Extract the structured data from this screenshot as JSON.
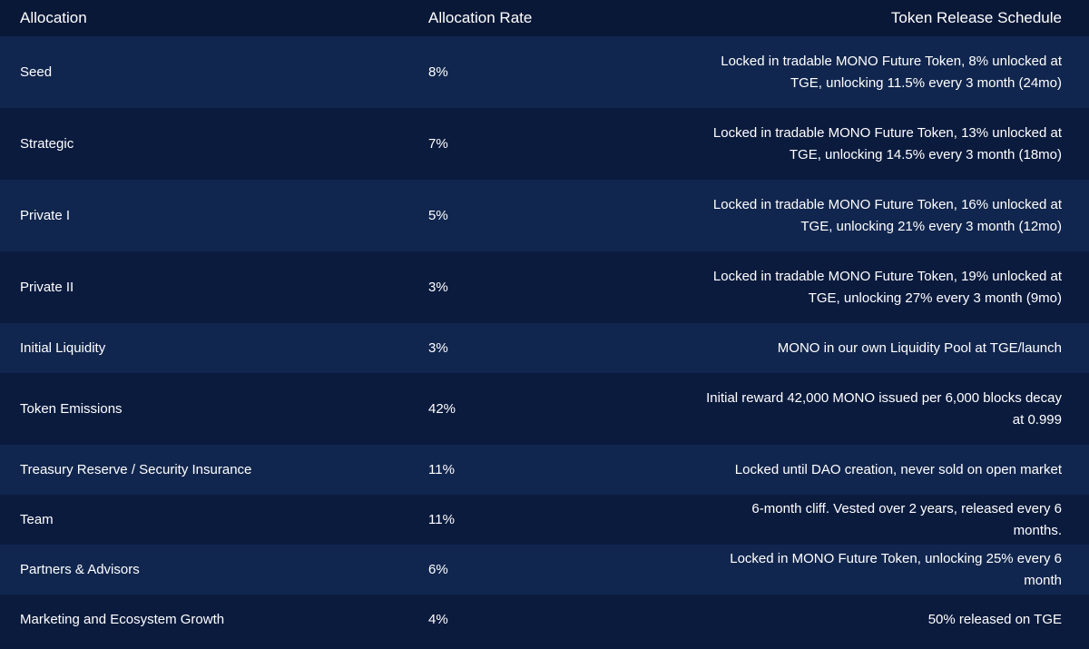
{
  "table": {
    "header": [
      "Allocation",
      "Allocation Rate",
      "Token Release Schedule"
    ],
    "rows": [
      [
        "Seed",
        "8%",
        "Locked in tradable MONO Future Token, 8% unlocked at TGE, unlocking 11.5% every 3 month (24mo)"
      ],
      [
        "Strategic",
        "7%",
        "Locked in tradable MONO Future Token, 13% unlocked at TGE, unlocking 14.5% every 3 month (18mo)"
      ],
      [
        "Private I",
        "5%",
        "Locked in tradable MONO Future Token, 16% unlocked at TGE, unlocking 21% every 3 month (12mo)"
      ],
      [
        "Private II",
        "3%",
        "Locked in tradable MONO Future Token, 19% unlocked at TGE, unlocking 27% every 3 month (9mo)"
      ],
      [
        "Initial Liquidity",
        "3%",
        "MONO in our own Liquidity Pool at TGE/launch"
      ],
      [
        "Token Emissions",
        "42%",
        "Initial reward 42,000 MONO issued per 6,000 blocks decay at 0.999"
      ],
      [
        "Treasury Reserve / Security Insurance",
        "11%",
        "Locked until DAO creation, never sold on open market"
      ],
      [
        "Team",
        "11%",
        "6-month cliff. Vested over 2 years, released every 6 months."
      ],
      [
        "Partners & Advisors",
        "6%",
        "Locked in MONO Future Token, unlocking 25% every 6 month"
      ],
      [
        "Marketing and Ecosystem Growth",
        "4%",
        "50% released on TGE"
      ]
    ]
  }
}
